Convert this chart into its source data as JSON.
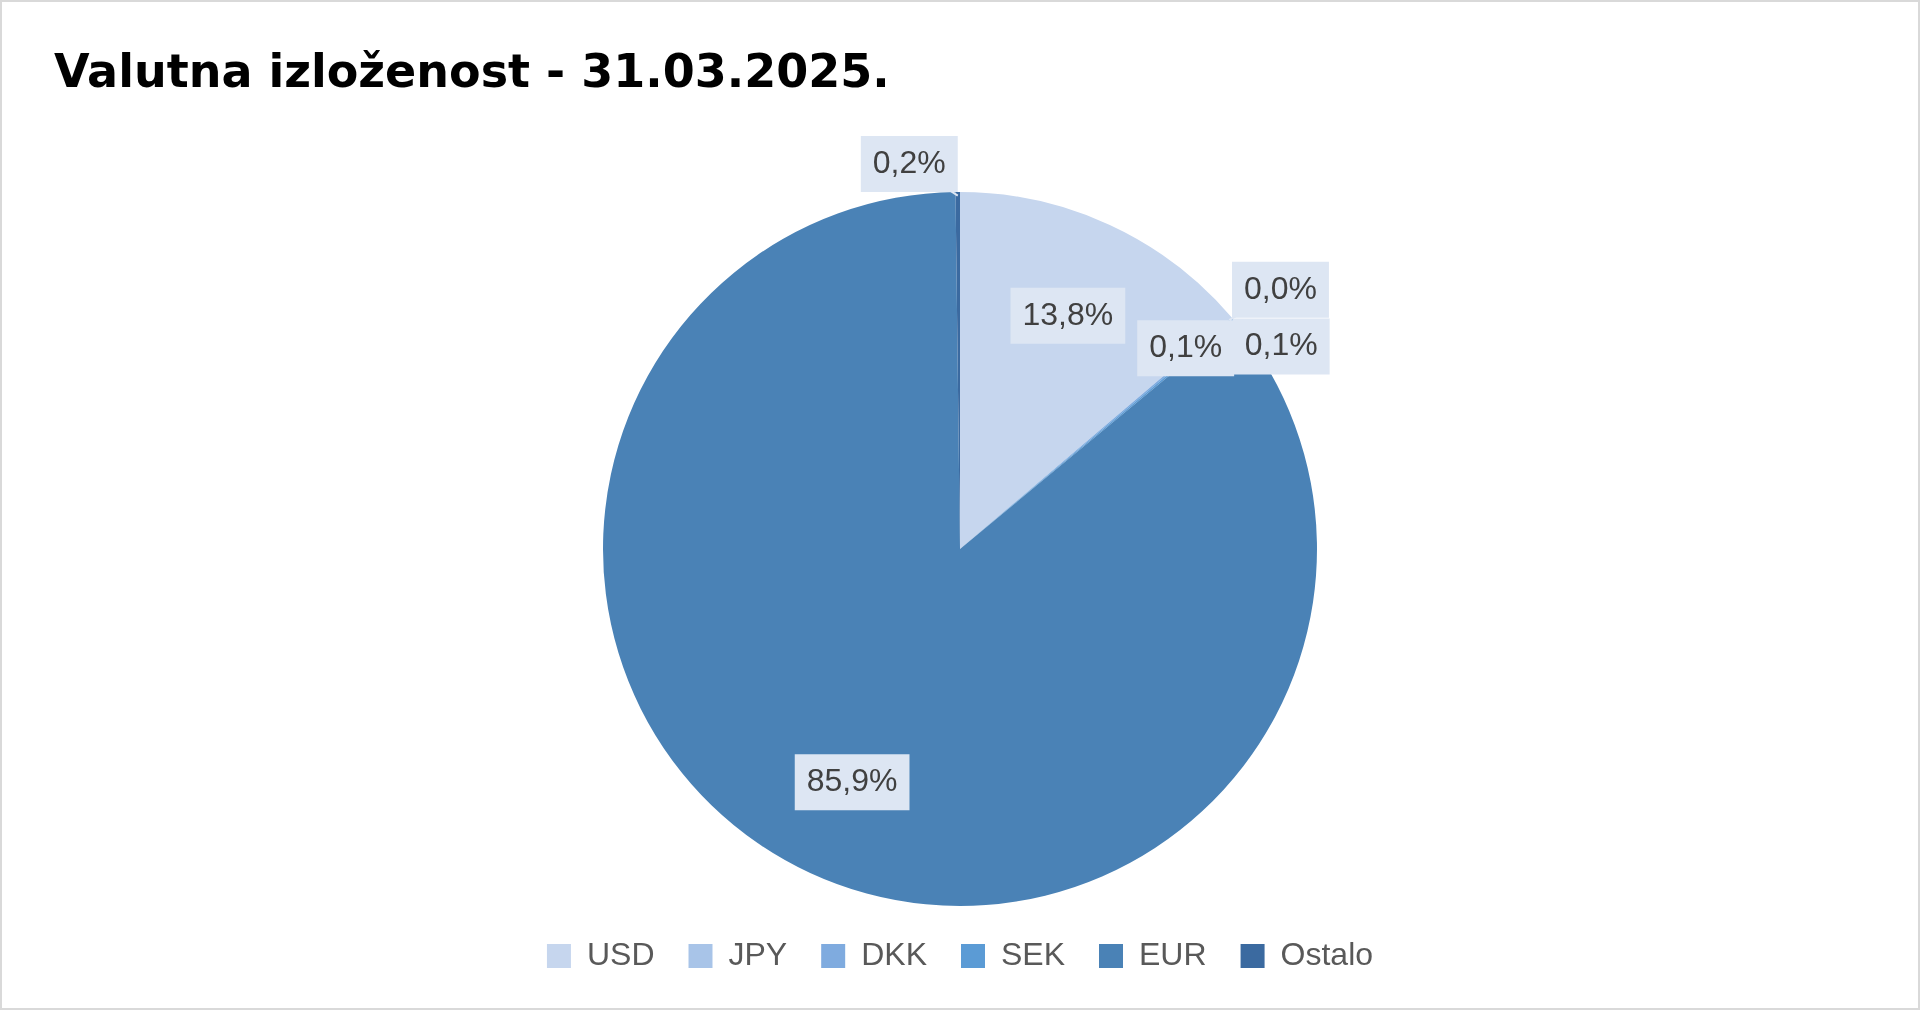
{
  "chart_data": {
    "type": "pie",
    "title": "Valutna izloženost - 31.03.2025.",
    "categories": [
      "USD",
      "JPY",
      "DKK",
      "SEK",
      "EUR",
      "Ostalo"
    ],
    "values": [
      13.8,
      0.0,
      0.1,
      0.1,
      85.9,
      0.2
    ],
    "value_labels": [
      "13,8%",
      "0,0%",
      "0,1%",
      "0,1%",
      "85,9%",
      "0,2%"
    ],
    "colors": [
      "#c6d6ee",
      "#a8c4e8",
      "#7fabdf",
      "#5b9bd5",
      "#4a82b6",
      "#3b6aa0"
    ],
    "legend": "bottom"
  }
}
